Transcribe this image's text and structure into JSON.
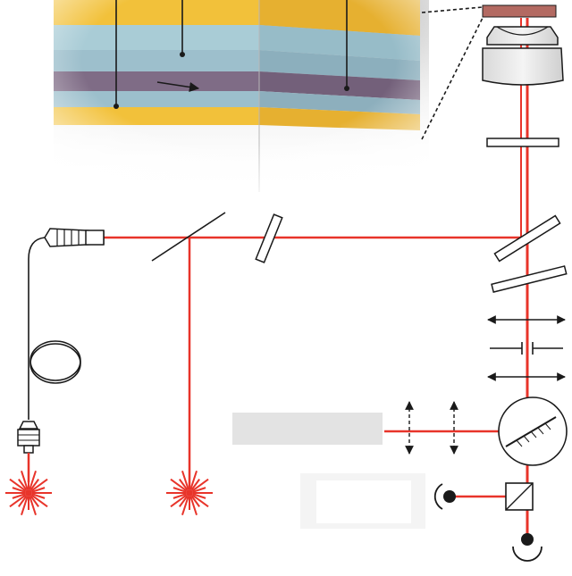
{
  "diagram": {
    "title": "",
    "labels": [],
    "colors": {
      "laser": "#e8342a",
      "ink": "#1a1a1a",
      "sample_gold": "#f2c13a",
      "sample_blue": "#a9ccd6",
      "sample_purple": "#7f6c86",
      "sample_mount": "#b36a62",
      "panel_gray": "#e3e3e3",
      "panel_light": "#f4f4f4"
    },
    "components": [
      "layered-sample",
      "objective-lens",
      "fiber-coupler",
      "fiber-coil",
      "fiber-connector",
      "beam-splitter",
      "wave-plate",
      "dichroic-mirror",
      "polarizer",
      "lens-pair",
      "pinhole",
      "diffraction-grating",
      "polarizing-beam-cube",
      "photodetector",
      "laser-source"
    ]
  }
}
